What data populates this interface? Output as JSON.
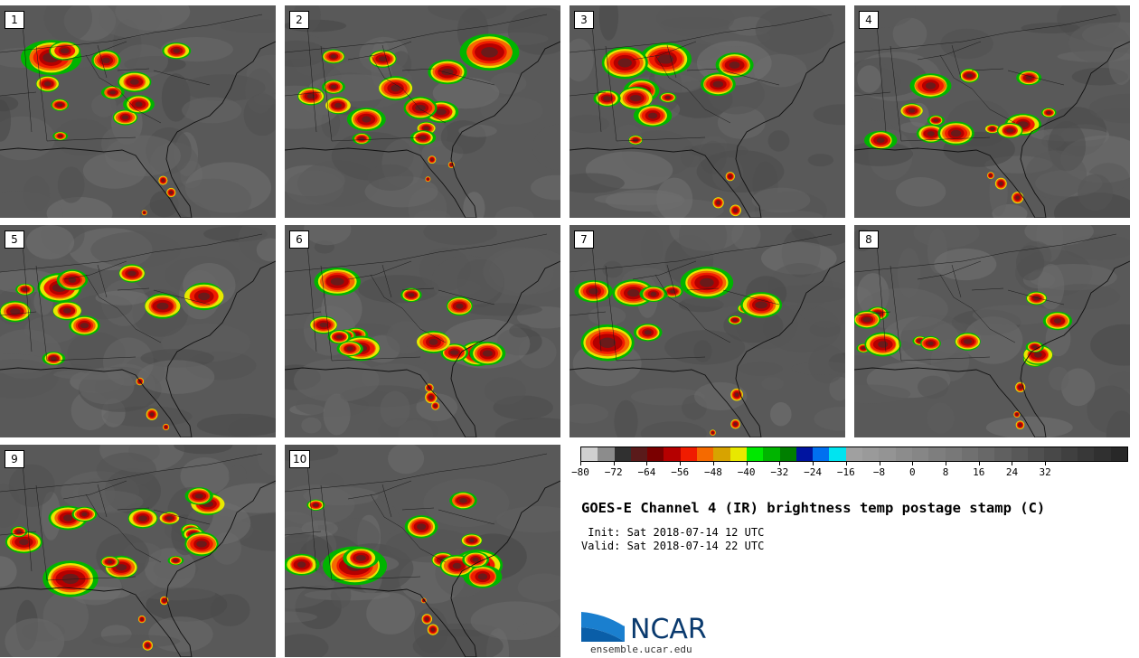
{
  "panels": [
    {
      "label": "1"
    },
    {
      "label": "2"
    },
    {
      "label": "3"
    },
    {
      "label": "4"
    },
    {
      "label": "5"
    },
    {
      "label": "6"
    },
    {
      "label": "7"
    },
    {
      "label": "8"
    },
    {
      "label": "9"
    },
    {
      "label": "10"
    }
  ],
  "colorbar": {
    "min": -80,
    "step": 4,
    "colors": [
      "#d0d0d0",
      "#8c8c8c",
      "#303030",
      "#5a1a1a",
      "#7a0000",
      "#b50000",
      "#f01c00",
      "#f56a00",
      "#d7a300",
      "#e8e800",
      "#00e800",
      "#00b400",
      "#007f00",
      "#0014a0",
      "#0070f0",
      "#00e4f0",
      "#a0a0a0",
      "#9a9a9a",
      "#949494",
      "#8c8c8c",
      "#868686",
      "#7e7e7e",
      "#787878",
      "#707070",
      "#686868",
      "#606060",
      "#585858",
      "#505050",
      "#484848",
      "#404040",
      "#383838",
      "#303030",
      "#282828"
    ],
    "tick_labels": [
      "−80",
      "−72",
      "−64",
      "−56",
      "−48",
      "−40",
      "−32",
      "−24",
      "−16",
      "−8",
      "0",
      "8",
      "16",
      "24",
      "32"
    ]
  },
  "title": "GOES-E Channel 4 (IR) brightness temp postage stamp (C)",
  "init": " Init: Sat 2018-07-14 12 UTC",
  "valid": "Valid: Sat 2018-07-14 22 UTC",
  "logo": {
    "word": "NCAR",
    "url": "ensemble.ucar.edu",
    "color": "#0a3a6e"
  }
}
